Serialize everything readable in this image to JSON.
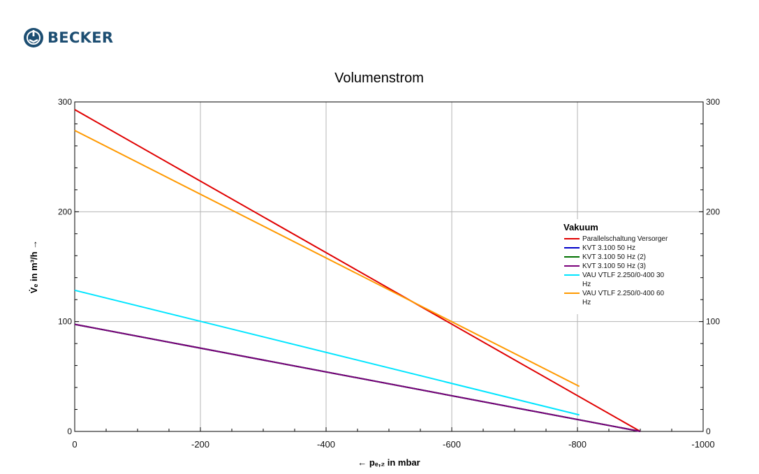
{
  "brand": {
    "name": "BECKER"
  },
  "chart_data": {
    "type": "line",
    "title": "Volumenstrom",
    "xlabel": "← pₑ,₂ in mbar",
    "ylabel": "V̇ₑ in m³/h →",
    "xlim": [
      0,
      -1000
    ],
    "ylim": [
      0,
      300
    ],
    "x_ticks": [
      "0",
      "-200",
      "-400",
      "-600",
      "-800",
      "-1000"
    ],
    "y_ticks": [
      "0",
      "100",
      "200",
      "300"
    ],
    "grid": true,
    "legend": {
      "title": "Vakuum",
      "placement": "right",
      "entries": [
        {
          "label": "Parallelschaltung Versorger",
          "color": "#e00000"
        },
        {
          "label": "KVT 3.100 50 Hz",
          "color": "#0000c8"
        },
        {
          "label": "KVT 3.100 50 Hz (2)",
          "color": "#007000"
        },
        {
          "label": "KVT 3.100 50 Hz (3)",
          "color": "#7a007a"
        },
        {
          "label": "VAU VTLF 2.250/0-400 30",
          "label_cont": "Hz",
          "color": "#00e5ff"
        },
        {
          "label": "VAU VTLF 2.250/0-400 60",
          "label_cont": "Hz",
          "color": "#ff9900"
        }
      ]
    },
    "series": [
      {
        "name": "Parallelschaltung Versorger",
        "color": "#e00000",
        "points": [
          [
            0,
            293
          ],
          [
            -900,
            0
          ]
        ]
      },
      {
        "name": "KVT 3.100 50 Hz",
        "color": "#0000c8",
        "points": [
          [
            0,
            97.5
          ],
          [
            -900,
            0
          ]
        ]
      },
      {
        "name": "KVT 3.100 50 Hz (2)",
        "color": "#007000",
        "points": [
          [
            0,
            97.5
          ],
          [
            -900,
            0
          ]
        ]
      },
      {
        "name": "KVT 3.100 50 Hz (3)",
        "color": "#7a007a",
        "points": [
          [
            0,
            97.5
          ],
          [
            -900,
            0
          ]
        ]
      },
      {
        "name": "VAU VTLF 2.250/0-400 30 Hz",
        "color": "#00e5ff",
        "points": [
          [
            0,
            128.5
          ],
          [
            -803,
            15
          ]
        ]
      },
      {
        "name": "VAU VTLF 2.250/0-400 60 Hz",
        "color": "#ff9900",
        "points": [
          [
            0,
            274
          ],
          [
            -803,
            41
          ]
        ]
      }
    ]
  }
}
